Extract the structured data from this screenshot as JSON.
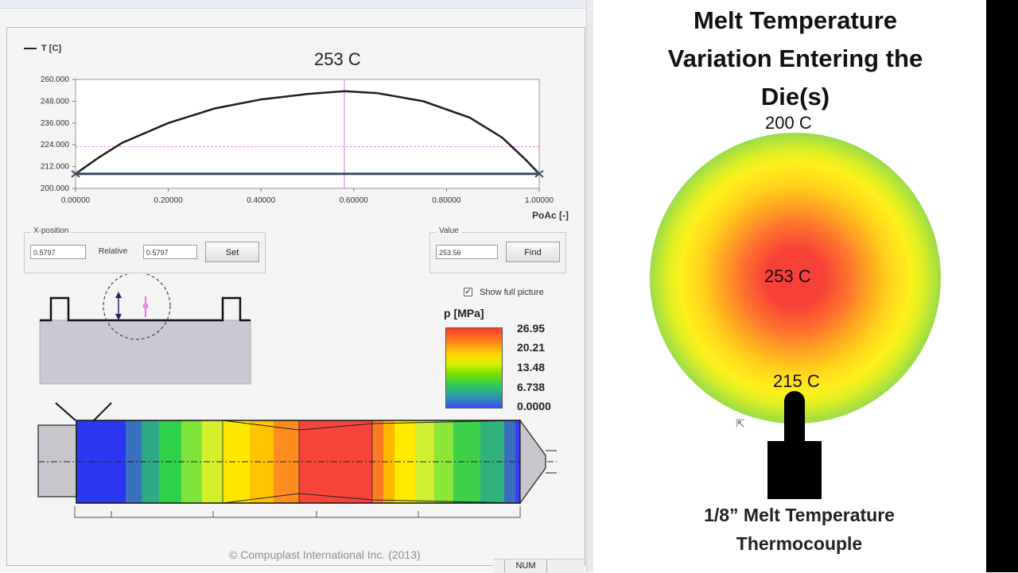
{
  "software": {
    "legend_label": "T [C]",
    "chart_title": "253 C",
    "xposition": {
      "group_label": "X-position",
      "value": "0.5797",
      "relative_label": "Relative",
      "relative_value": "0.5797",
      "set_button": "Set"
    },
    "value_box": {
      "group_label": "Value",
      "value": "253.56",
      "find_button": "Find"
    },
    "show_full_picture": {
      "label": "Show full picture",
      "checked": true
    },
    "pressure_legend": {
      "title": "p [MPa]",
      "ticks": [
        "26.95",
        "20.21",
        "13.48",
        "6.738",
        "0.0000"
      ]
    },
    "copyright": "© Compuplast International Inc. (2013)",
    "status": "NUM"
  },
  "chart_data": {
    "type": "line",
    "title": "253 C",
    "xlabel": "PoAc [-]",
    "ylabel": "T [C]",
    "xlim": [
      0,
      1
    ],
    "ylim": [
      200,
      260
    ],
    "x_ticks": [
      "0.00000",
      "0.20000",
      "0.40000",
      "0.60000",
      "0.80000",
      "1.00000"
    ],
    "y_ticks": [
      "260.000",
      "248.000",
      "236.000",
      "224.000",
      "212.000",
      "200.000"
    ],
    "series": [
      {
        "x": [
          0,
          0.05,
          0.1,
          0.2,
          0.3,
          0.4,
          0.5,
          0.58,
          0.65,
          0.75,
          0.85,
          0.92,
          0.97,
          1.0
        ],
        "y": [
          208,
          217,
          225,
          236,
          244,
          249,
          252,
          253.56,
          252.5,
          248,
          239,
          228,
          216,
          208
        ]
      }
    ],
    "baseline": 208,
    "crosshair": {
      "x": 0.5797,
      "y": 223
    },
    "grid": false
  },
  "diagram": {
    "title": "Melt Temperature Variation Entering the Die(s)",
    "outer_label": "200 C",
    "center_label": "253 C",
    "inner_label": "215 C",
    "caption": "1/8” Melt Temperature Thermocouple"
  }
}
